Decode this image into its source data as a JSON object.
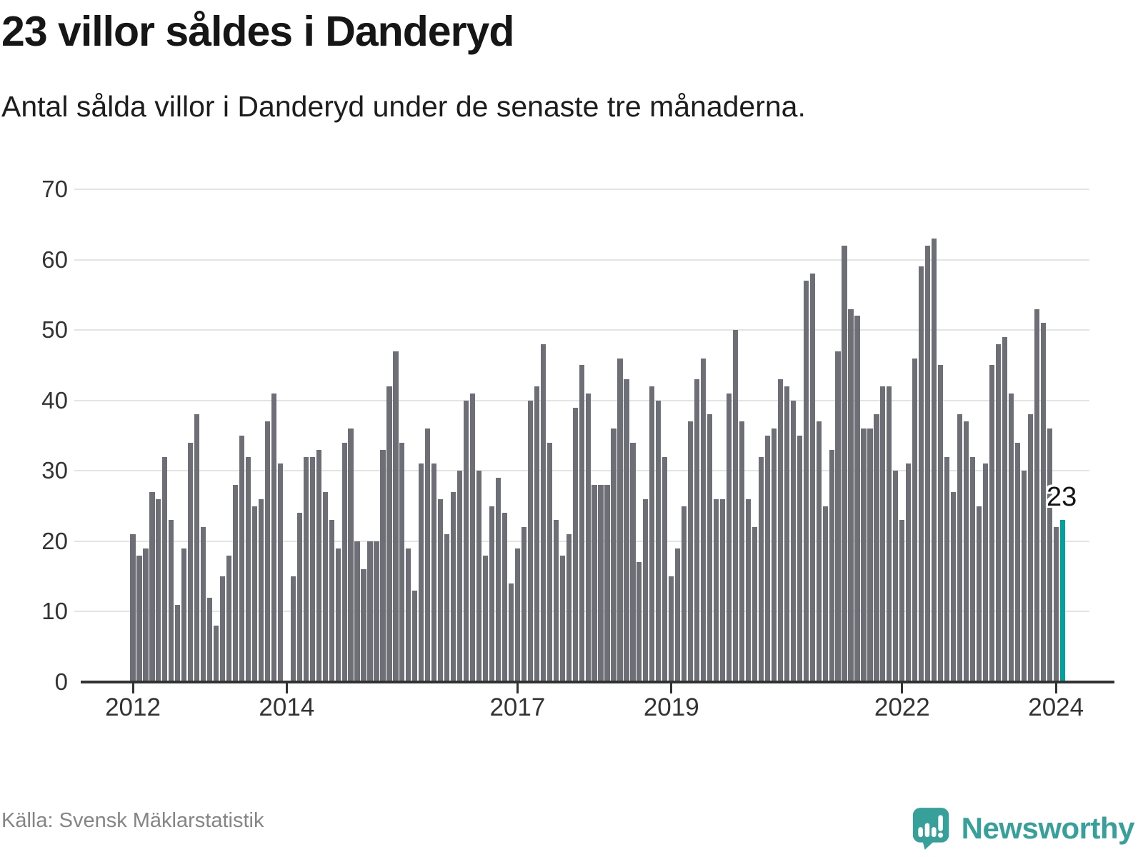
{
  "header": {
    "title": "23 villor såldes i Danderyd",
    "subtitle": "Antal sålda villor i Danderyd under de senaste tre månaderna."
  },
  "chart_data": {
    "type": "bar",
    "title": "23 villor såldes i Danderyd",
    "subtitle": "Antal sålda villor i Danderyd under de senaste tre månaderna.",
    "frequency": "monthly",
    "period_start": "2012-01",
    "period_end": "2024-02",
    "values": [
      21,
      18,
      19,
      27,
      26,
      32,
      23,
      11,
      19,
      34,
      38,
      22,
      12,
      8,
      15,
      18,
      28,
      35,
      32,
      25,
      26,
      37,
      41,
      31,
      0,
      15,
      24,
      32,
      32,
      33,
      27,
      23,
      19,
      34,
      36,
      20,
      16,
      20,
      20,
      33,
      42,
      47,
      34,
      19,
      13,
      31,
      36,
      31,
      26,
      21,
      27,
      30,
      40,
      41,
      30,
      18,
      25,
      29,
      24,
      14,
      19,
      22,
      40,
      42,
      48,
      34,
      23,
      18,
      21,
      39,
      45,
      41,
      28,
      28,
      28,
      36,
      46,
      43,
      34,
      17,
      26,
      42,
      40,
      32,
      15,
      19,
      25,
      37,
      43,
      46,
      38,
      26,
      26,
      41,
      50,
      37,
      26,
      22,
      32,
      35,
      36,
      43,
      42,
      40,
      35,
      57,
      58,
      37,
      25,
      33,
      47,
      62,
      53,
      52,
      36,
      36,
      38,
      42,
      42,
      30,
      23,
      31,
      46,
      59,
      62,
      63,
      45,
      32,
      27,
      38,
      37,
      32,
      25,
      31,
      45,
      48,
      49,
      41,
      34,
      30,
      38,
      53,
      51,
      36,
      22,
      23
    ],
    "gap_indices": [
      24
    ],
    "highlight_index": 145,
    "highlight_label": "23",
    "ylim": [
      0,
      70
    ],
    "yticks": [
      "0",
      "10",
      "20",
      "30",
      "40",
      "50",
      "60",
      "70"
    ],
    "x_ticks": [
      {
        "label": "2012",
        "month_index": 0
      },
      {
        "label": "2014",
        "month_index": 24
      },
      {
        "label": "2017",
        "month_index": 60
      },
      {
        "label": "2019",
        "month_index": 84
      },
      {
        "label": "2022",
        "month_index": 120
      },
      {
        "label": "2024",
        "month_index": 144
      }
    ],
    "bar_color": "#6e6e76",
    "highlight_color": "#03a09d",
    "grid": "horizontal",
    "legend": "none"
  },
  "footer": {
    "source": "Källa: Svensk Mäklarstatistik",
    "brand": "Newsworthy"
  },
  "colors": {
    "bar_gray": "#6e6e76",
    "accent_teal": "#03a09d",
    "logo_teal": "#38a09a",
    "axis": "#323232",
    "gridline": "#e4e4e4",
    "text_dark": "#161616",
    "text_muted": "#858585"
  }
}
